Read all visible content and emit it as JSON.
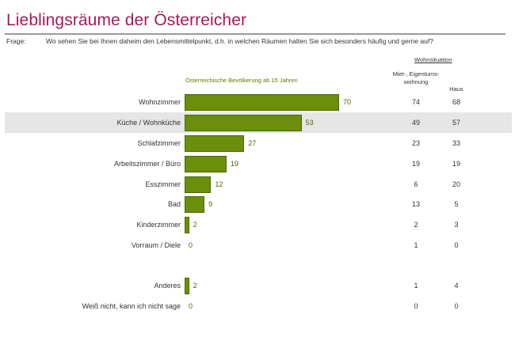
{
  "header": {
    "title": "Lieblingsräume der Österreicher",
    "question_label": "Frage:",
    "question_text": "Wo sehen Sie bei Ihnen daheim den Lebensmittelpunkt, d.h. in welchen Räumen halten Sie sich besonders häufig und gerne auf?"
  },
  "table": {
    "group_header": "Wohnsituation",
    "col_miet": "Miet-, Eigentums-wohnung",
    "col_haus": "Haus"
  },
  "colors": {
    "title": "#a8185a",
    "bar": "#6b8e0b",
    "band": "#e6e6e6"
  },
  "chart_data": {
    "type": "bar",
    "orientation": "horizontal",
    "series_label": "Österreichische Bevölkerung ab 15 Jahren",
    "categories": [
      "Wohnzimmer",
      "Küche / Wohnküche",
      "Schlafzimmer",
      "Arbeitszimmer / Büro",
      "Esszimmer",
      "Bad",
      "Kinderzimmer",
      "Vorraum / Diele",
      "Anderes",
      "Weiß nicht, kann ich nicht sage"
    ],
    "values": [
      70,
      53,
      27,
      19,
      12,
      9,
      2,
      0,
      2,
      0
    ],
    "miet_eigentumswohnung": [
      74,
      49,
      23,
      19,
      6,
      13,
      2,
      1,
      1,
      0
    ],
    "haus": [
      68,
      57,
      33,
      19,
      20,
      5,
      3,
      0,
      4,
      0
    ],
    "highlighted_category": "Küche / Wohnküche",
    "xlim": [
      0,
      70
    ]
  }
}
